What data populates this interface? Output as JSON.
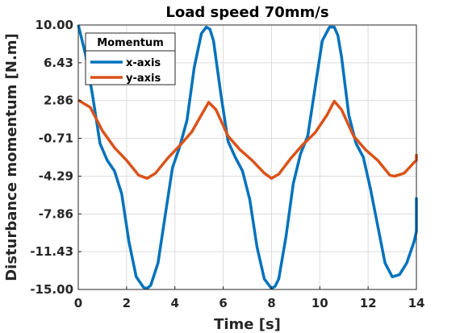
{
  "chart_data": {
    "type": "line",
    "title": "Load speed 70mm/s",
    "xlabel": "Time [s]",
    "ylabel": "Disturbance momentum [N.m]",
    "xlim": [
      0,
      14
    ],
    "ylim": [
      -15,
      10
    ],
    "xticks": [
      0,
      2,
      4,
      6,
      8,
      10,
      12,
      14
    ],
    "yticks": [
      -15.0,
      -11.43,
      -7.86,
      -4.29,
      -0.71,
      2.86,
      6.43,
      10.0
    ],
    "ytick_labels": [
      "-15.00",
      "-11.43",
      "-7.86",
      "-4.29",
      "-0.71",
      "2.86",
      "6.43",
      "10.00"
    ],
    "grid": true,
    "legend": {
      "title": "Momentum",
      "position": "top-left"
    },
    "series": [
      {
        "name": "x-axis",
        "color": "#0072BD",
        "x": [
          0,
          0.3,
          0.6,
          0.9,
          1.2,
          1.5,
          1.8,
          2.1,
          2.4,
          2.7,
          2.85,
          3.0,
          3.3,
          3.6,
          3.9,
          4.2,
          4.5,
          4.8,
          5.1,
          5.3,
          5.45,
          5.6,
          5.9,
          6.2,
          6.5,
          6.8,
          7.1,
          7.4,
          7.7,
          8.0,
          8.15,
          8.3,
          8.6,
          8.9,
          9.2,
          9.5,
          9.8,
          10.1,
          10.4,
          10.6,
          10.75,
          10.9,
          11.2,
          11.5,
          11.8,
          12.1,
          12.4,
          12.7,
          13.0,
          13.3,
          13.6,
          13.9,
          14.0,
          14.0
        ],
        "values": [
          10.0,
          7.2,
          3.2,
          -1.2,
          -2.8,
          -3.8,
          -6.0,
          -10.5,
          -13.8,
          -14.8,
          -14.9,
          -14.6,
          -12.5,
          -8.0,
          -3.5,
          -1.5,
          1.0,
          6.0,
          9.2,
          9.8,
          9.6,
          8.5,
          3.5,
          -1.0,
          -2.5,
          -3.8,
          -6.5,
          -11.0,
          -14.0,
          -14.9,
          -14.7,
          -14.0,
          -10.0,
          -5.0,
          -2.2,
          -0.5,
          4.0,
          8.5,
          9.8,
          9.8,
          9.0,
          7.0,
          1.5,
          -1.2,
          -2.5,
          -5.5,
          -9.0,
          -12.5,
          -13.8,
          -13.6,
          -12.5,
          -10.5,
          -9.5,
          -6.3
        ]
      },
      {
        "name": "y-axis",
        "color": "#D95319",
        "x": [
          0,
          0.5,
          1.0,
          1.5,
          2.0,
          2.5,
          2.85,
          3.2,
          3.7,
          4.2,
          4.7,
          5.1,
          5.4,
          5.7,
          6.2,
          6.7,
          7.2,
          7.7,
          8.0,
          8.3,
          8.8,
          9.3,
          9.8,
          10.3,
          10.6,
          10.9,
          11.4,
          11.9,
          12.4,
          12.9,
          13.1,
          13.5,
          13.9,
          14.0,
          14.0
        ],
        "values": [
          2.9,
          2.2,
          0.0,
          -1.6,
          -2.8,
          -4.2,
          -4.5,
          -4.0,
          -2.6,
          -1.4,
          -0.1,
          1.5,
          2.7,
          2.0,
          -0.5,
          -1.8,
          -2.8,
          -4.0,
          -4.5,
          -4.1,
          -2.6,
          -1.3,
          -0.2,
          1.5,
          2.8,
          2.0,
          -0.5,
          -1.8,
          -2.8,
          -4.2,
          -4.3,
          -4.0,
          -3.0,
          -2.8,
          -2.2
        ]
      }
    ]
  }
}
